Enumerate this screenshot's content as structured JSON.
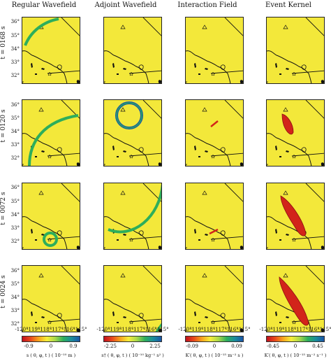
{
  "columns": [
    {
      "title": "Regular Wavefield",
      "cbar_ticks": [
        "-0.9",
        "0",
        "0.9"
      ],
      "cbar_label": "s ( θ, φ, t ) ( 10⁻¹⁰ m )"
    },
    {
      "title": "Adjoint Wavefield",
      "cbar_ticks": [
        "-2.25",
        "0",
        "2.25"
      ],
      "cbar_label": "s† ( θ, φ, t ) ( 10⁻¹⁰ kg⁻¹ s² )"
    },
    {
      "title": "Interaction Field",
      "cbar_ticks": [
        "-0.09",
        "0",
        "0.09"
      ],
      "cbar_label": "K′( θ, φ, t ) ( 10⁻¹⁵ m⁻² s )"
    },
    {
      "title": "Event Kernel",
      "cbar_ticks": [
        "-0.45",
        "0",
        "0.45"
      ],
      "cbar_label": "K′( θ, φ, t ) ( 10⁻¹⁵ m⁻² s⁻¹ )"
    }
  ],
  "rows": [
    {
      "label": "t = 0168 s"
    },
    {
      "label": "t = 0120 s"
    },
    {
      "label": "t = 0072 s"
    },
    {
      "label": "t = 0024 s"
    }
  ],
  "y_ticks": [
    "36°",
    "35°",
    "34°",
    "33°",
    "32°"
  ],
  "x_ticks": [
    "-120°",
    "-119°",
    "-118°",
    "-117°",
    "-116°",
    "-115°"
  ],
  "colors": {
    "background": "#f3e83a",
    "coast": "#111111",
    "green": "#2dae5b",
    "blue": "#1a55a6",
    "red": "#d2241a"
  }
}
